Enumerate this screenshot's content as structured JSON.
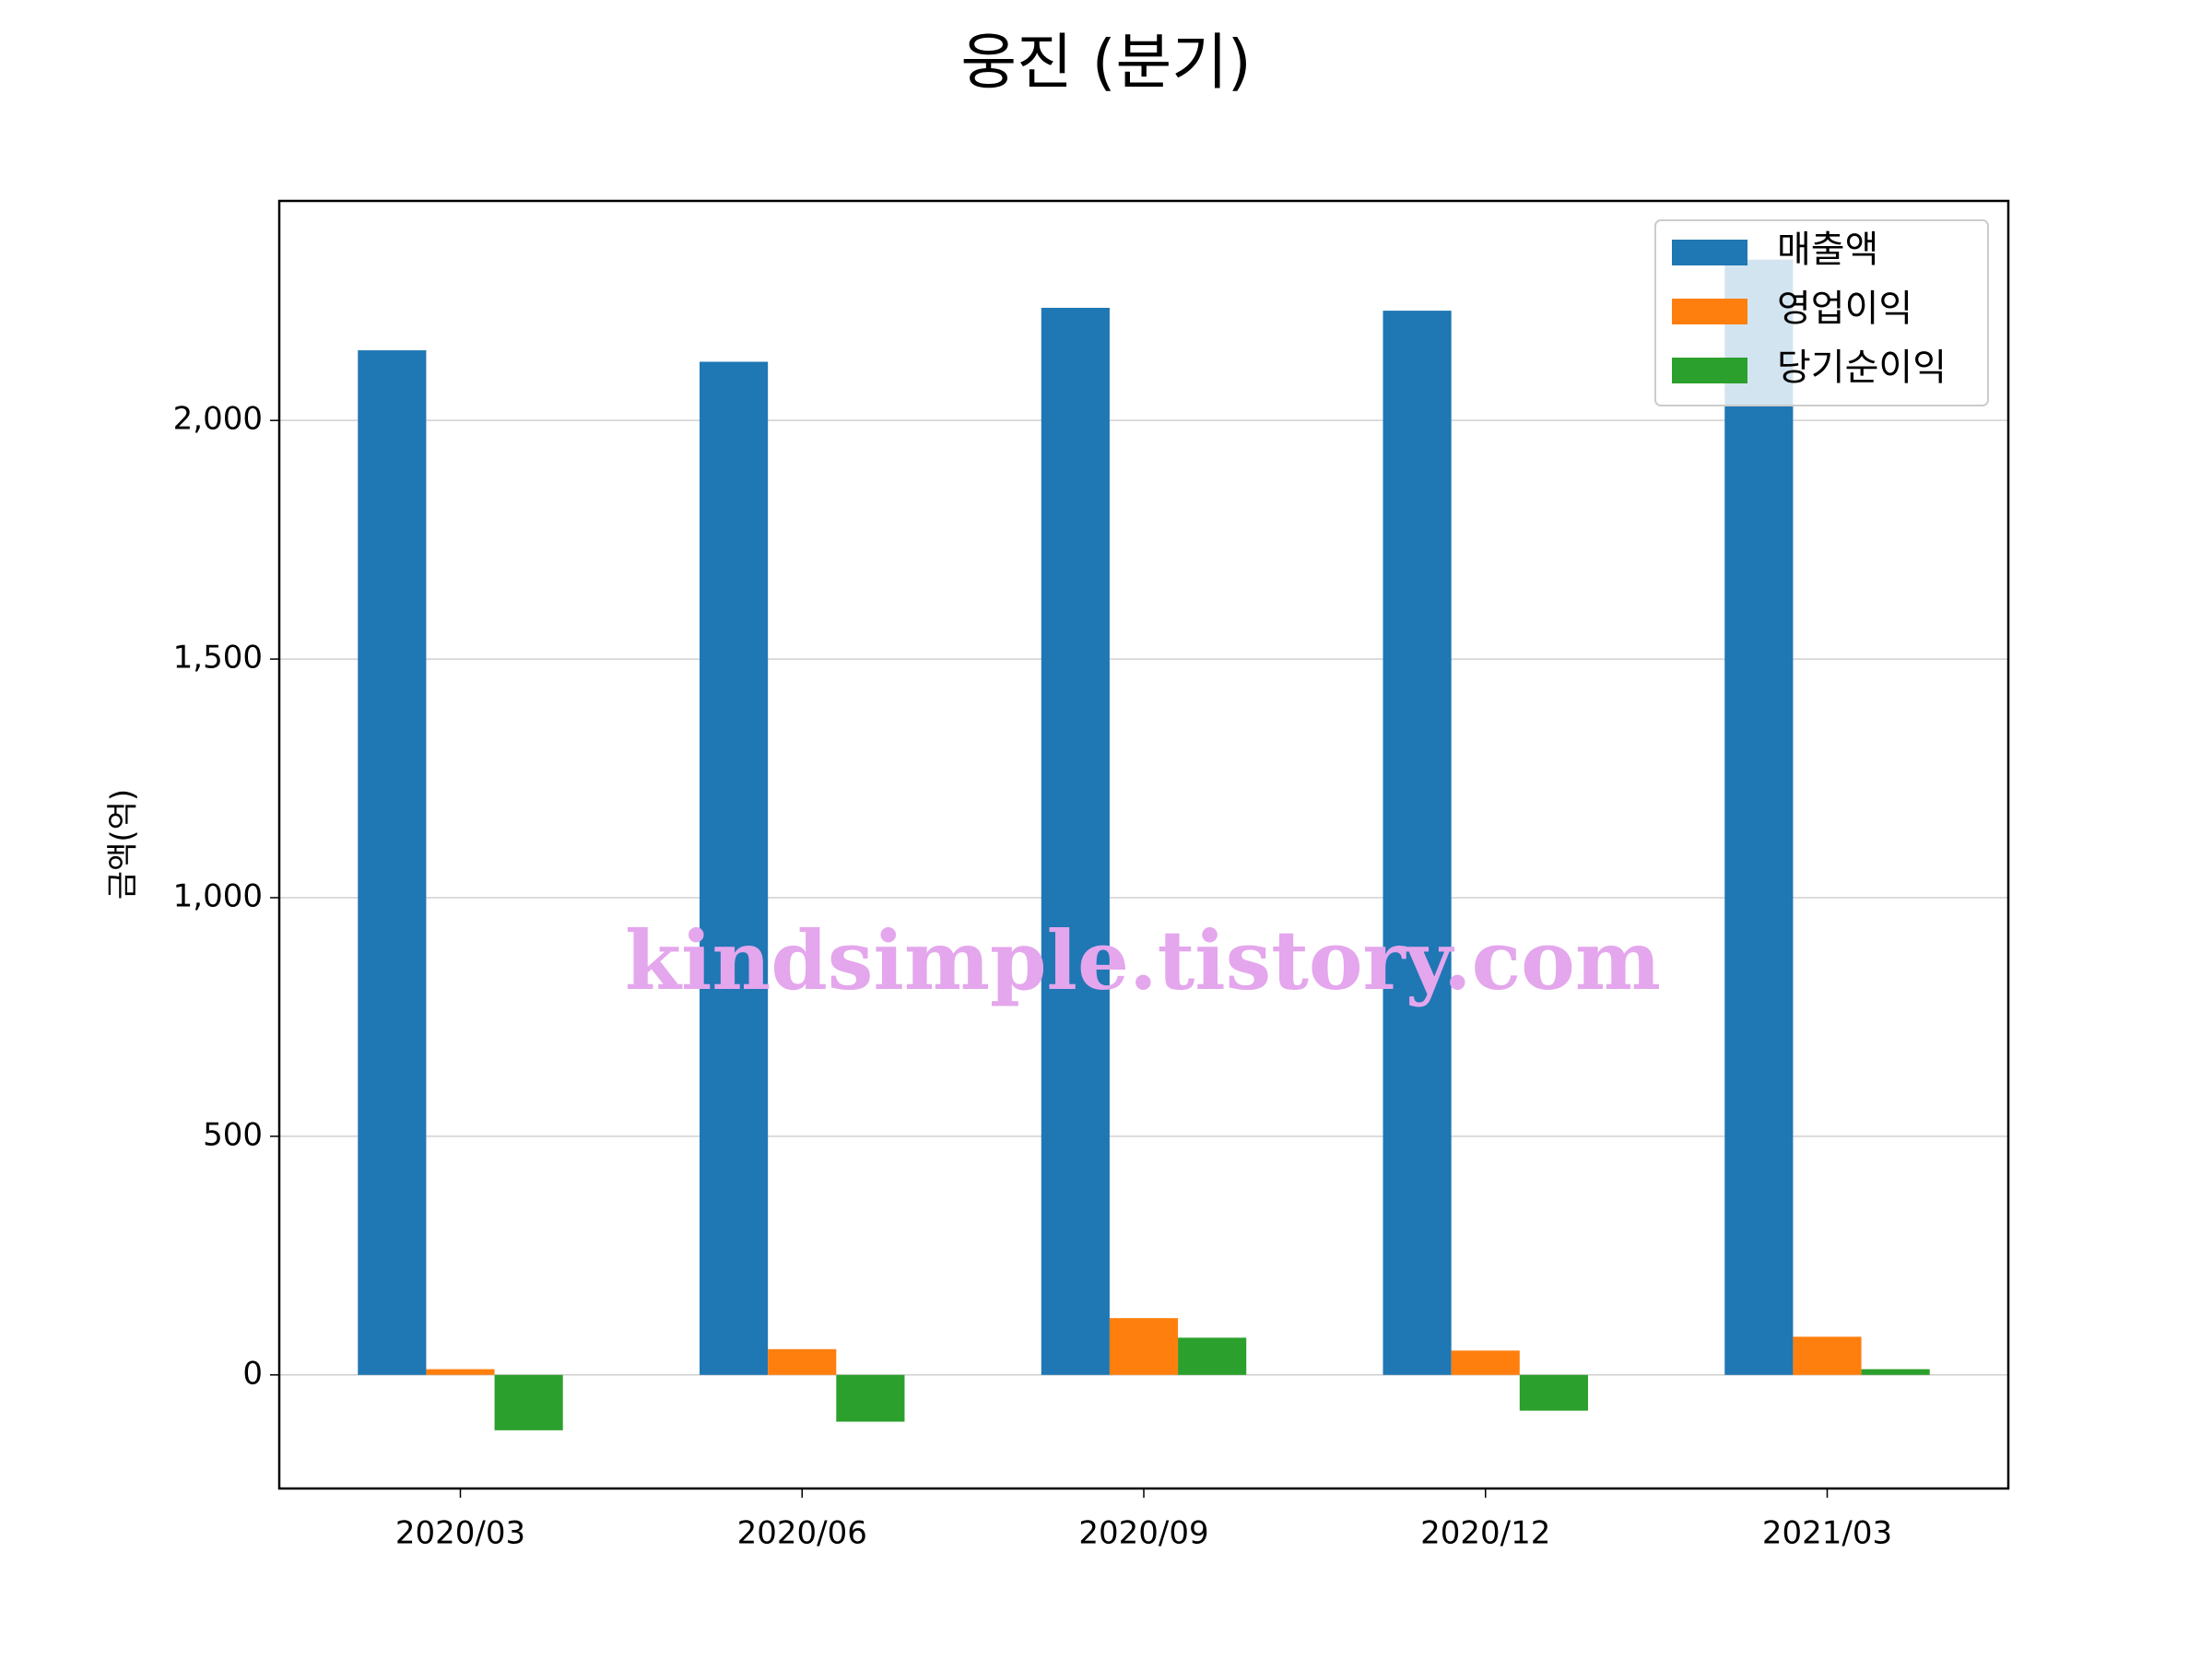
{
  "chart_data": {
    "type": "bar",
    "title": "웅진 (분기)",
    "ylabel": "금액(억)",
    "watermark": "kindsimple.tistory.com",
    "categories": [
      "2020/03",
      "2020/06",
      "2020/09",
      "2020/12",
      "2021/03"
    ],
    "series": [
      {
        "name": "매출액",
        "color": "#1f77b4",
        "values": [
          2147,
          2123,
          2236,
          2230,
          2337
        ]
      },
      {
        "name": "영업이익",
        "color": "#ff7f0e",
        "values": [
          12,
          54,
          119,
          51,
          80
        ]
      },
      {
        "name": "당기순이익",
        "color": "#2ca02c",
        "values": [
          -116,
          -98,
          78,
          -75,
          12
        ]
      }
    ],
    "ylim": [
      -238,
      2460
    ],
    "yticks": [
      0,
      500,
      {
        "value": 1000,
        "label": "1,000"
      },
      {
        "value": 1500,
        "label": "1,500"
      },
      {
        "value": 2000,
        "label": "2,000"
      }
    ],
    "grid": true,
    "legend": "upper right"
  }
}
